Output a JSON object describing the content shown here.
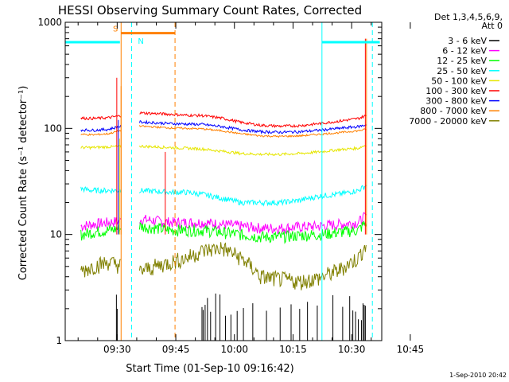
{
  "chart_data": {
    "type": "line",
    "title": "HESSI Observing Summary Count Rates, Corrected",
    "xlabel": "Start Time (01-Sep-10 09:16:42)",
    "ylabel": "Corrected Count Rate (s⁻¹ detector⁻¹)",
    "x_unit": "minutes since 09:16:42 UT",
    "xlim": [
      0,
      81
    ],
    "y_scale": "log",
    "ylim": [
      1,
      1000
    ],
    "x_ticks": [
      {
        "x": 13.3,
        "label": "09:30"
      },
      {
        "x": 28.3,
        "label": "09:45"
      },
      {
        "x": 43.3,
        "label": "10:00"
      },
      {
        "x": 58.3,
        "label": "10:15"
      },
      {
        "x": 73.3,
        "label": "10:30"
      },
      {
        "x": 88.3,
        "label": "10:45"
      }
    ],
    "y_ticks": [
      {
        "y": 1,
        "label": "1"
      },
      {
        "y": 10,
        "label": "10"
      },
      {
        "y": 100,
        "label": "100"
      },
      {
        "y": 1000,
        "label": "1000"
      }
    ],
    "legend_title": [
      "Det 1,3,4,5,6,9,",
      "Att 0"
    ],
    "legend_position": "right",
    "series": [
      {
        "name": "3 - 6 keV",
        "color": "#000000",
        "points": [
          [
            11,
            1
          ],
          [
            19,
            1
          ],
          [
            27,
            1
          ],
          [
            35,
            1
          ],
          [
            37,
            2
          ],
          [
            40,
            1
          ],
          [
            42,
            1
          ],
          [
            46,
            1
          ],
          [
            50,
            1
          ],
          [
            55,
            1
          ],
          [
            60,
            1
          ],
          [
            65,
            1
          ],
          [
            70,
            1
          ],
          [
            75,
            1
          ],
          [
            80,
            1
          ]
        ]
      },
      {
        "name": "6 - 12 keV",
        "color": "#ff00ff",
        "points": [
          [
            4,
            12
          ],
          [
            7,
            12.5
          ],
          [
            11,
            13
          ],
          [
            19,
            14
          ],
          [
            23,
            13.5
          ],
          [
            27,
            13
          ],
          [
            31,
            13
          ],
          [
            35,
            13
          ],
          [
            40,
            12.5
          ],
          [
            45,
            12
          ],
          [
            50,
            11.5
          ],
          [
            55,
            11.5
          ],
          [
            60,
            11.8
          ],
          [
            65,
            12
          ],
          [
            70,
            12.5
          ],
          [
            75,
            13
          ],
          [
            77,
            15
          ]
        ]
      },
      {
        "name": "12 - 25 keV",
        "color": "#00ff00",
        "points": [
          [
            4,
            10
          ],
          [
            7,
            10.5
          ],
          [
            11,
            11
          ],
          [
            19,
            12
          ],
          [
            23,
            11.5
          ],
          [
            27,
            11
          ],
          [
            31,
            11
          ],
          [
            35,
            11
          ],
          [
            40,
            10.5
          ],
          [
            45,
            10
          ],
          [
            50,
            9.5
          ],
          [
            55,
            9.5
          ],
          [
            60,
            9.8
          ],
          [
            65,
            10
          ],
          [
            70,
            10.5
          ],
          [
            75,
            11
          ],
          [
            77,
            13
          ]
        ]
      },
      {
        "name": "25 - 50 keV",
        "color": "#00ffff",
        "points": [
          [
            4,
            27
          ],
          [
            7,
            26
          ],
          [
            11,
            26
          ],
          [
            19,
            26
          ],
          [
            23,
            25.5
          ],
          [
            27,
            25
          ],
          [
            31,
            25
          ],
          [
            35,
            24
          ],
          [
            40,
            22
          ],
          [
            45,
            20
          ],
          [
            50,
            20
          ],
          [
            55,
            20
          ],
          [
            60,
            21
          ],
          [
            65,
            23
          ],
          [
            70,
            24
          ],
          [
            75,
            26
          ],
          [
            77,
            29
          ]
        ]
      },
      {
        "name": "50 - 100 keV",
        "color": "#e6e600",
        "points": [
          [
            4,
            66
          ],
          [
            7,
            66
          ],
          [
            11,
            67
          ],
          [
            19,
            68
          ],
          [
            23,
            67
          ],
          [
            27,
            66
          ],
          [
            31,
            65
          ],
          [
            35,
            64
          ],
          [
            40,
            61
          ],
          [
            45,
            58
          ],
          [
            50,
            57
          ],
          [
            55,
            57
          ],
          [
            60,
            58
          ],
          [
            65,
            60
          ],
          [
            70,
            63
          ],
          [
            75,
            65
          ],
          [
            77,
            70
          ]
        ]
      },
      {
        "name": "100 - 300 keV",
        "color": "#ff0000",
        "points": [
          [
            4,
            125
          ],
          [
            7,
            124
          ],
          [
            11,
            126
          ],
          [
            19,
            140
          ],
          [
            23,
            138
          ],
          [
            27,
            136
          ],
          [
            31,
            133
          ],
          [
            35,
            132
          ],
          [
            40,
            125
          ],
          [
            45,
            114
          ],
          [
            50,
            107
          ],
          [
            55,
            105
          ],
          [
            60,
            106
          ],
          [
            65,
            111
          ],
          [
            70,
            117
          ],
          [
            75,
            124
          ],
          [
            77,
            132
          ]
        ]
      },
      {
        "name": "300 - 800 keV",
        "color": "#0000ff",
        "points": [
          [
            4,
            97
          ],
          [
            7,
            96
          ],
          [
            11,
            98
          ],
          [
            19,
            115
          ],
          [
            23,
            113
          ],
          [
            27,
            111
          ],
          [
            31,
            110
          ],
          [
            35,
            109
          ],
          [
            40,
            104
          ],
          [
            45,
            97
          ],
          [
            50,
            93
          ],
          [
            55,
            92
          ],
          [
            60,
            93
          ],
          [
            65,
            96
          ],
          [
            70,
            100
          ],
          [
            75,
            104
          ],
          [
            77,
            108
          ]
        ]
      },
      {
        "name": "800 - 7000 keV",
        "color": "#ff8000",
        "points": [
          [
            4,
            88
          ],
          [
            7,
            87
          ],
          [
            11,
            89
          ],
          [
            19,
            105
          ],
          [
            23,
            103
          ],
          [
            27,
            101
          ],
          [
            31,
            100
          ],
          [
            35,
            99
          ],
          [
            40,
            95
          ],
          [
            45,
            89
          ],
          [
            50,
            85
          ],
          [
            55,
            84
          ],
          [
            60,
            85
          ],
          [
            65,
            88
          ],
          [
            70,
            91
          ],
          [
            75,
            95
          ],
          [
            77,
            98
          ]
        ]
      },
      {
        "name": "7000 - 20000 keV",
        "color": "#808000",
        "points": [
          [
            4,
            4.5
          ],
          [
            7,
            5
          ],
          [
            11,
            5.5
          ],
          [
            19,
            4.5
          ],
          [
            23,
            5
          ],
          [
            27,
            5.5
          ],
          [
            31,
            6
          ],
          [
            35,
            7
          ],
          [
            40,
            7.5
          ],
          [
            45,
            6
          ],
          [
            50,
            4
          ],
          [
            55,
            3.8
          ],
          [
            60,
            3.6
          ],
          [
            65,
            3.9
          ],
          [
            70,
            4.6
          ],
          [
            75,
            6
          ],
          [
            77,
            8
          ]
        ]
      }
    ],
    "annotations": [
      {
        "text": "S",
        "color": "#ff8000"
      },
      {
        "text": "N",
        "color": "#00ffff"
      }
    ],
    "vertical_lines": [
      {
        "x": 14.3,
        "color": "#ff8000",
        "style": "solid"
      },
      {
        "x": 28.1,
        "color": "#ff8000",
        "style": "dashed"
      },
      {
        "x": 17.0,
        "color": "#00ffff",
        "style": "dashed"
      },
      {
        "x": 65.7,
        "color": "#00ffff",
        "style": "solid"
      },
      {
        "x": 78.6,
        "color": "#00ffff",
        "style": "dashed"
      }
    ],
    "bars": [
      {
        "x1": 0,
        "x2": 14.0,
        "y": 650,
        "color": "#00ffff"
      },
      {
        "x1": 14.3,
        "x2": 28.1,
        "y": 790,
        "color": "#ff8000"
      },
      {
        "x1": 65.7,
        "x2": 80.5,
        "y": 650,
        "color": "#00ffff"
      }
    ],
    "data_segments": [
      [
        4,
        14.3
      ],
      [
        19,
        77
      ]
    ]
  },
  "footer": {
    "timestamp": "1-Sep-2010 20:42"
  }
}
